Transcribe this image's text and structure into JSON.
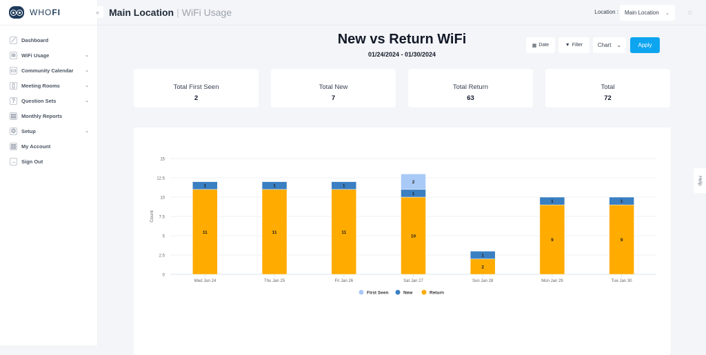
{
  "app": {
    "brand_light": "WHO",
    "brand_bold": "FI"
  },
  "sidebar": {
    "items": [
      {
        "label": "Dashboard",
        "icon": "chart-line-icon",
        "chevron": false
      },
      {
        "label": "WiFi Usage",
        "icon": "wifi-icon",
        "chevron": true
      },
      {
        "label": "Community Calendar",
        "icon": "calendar-icon",
        "chevron": true
      },
      {
        "label": "Meeting Rooms",
        "icon": "door-icon",
        "chevron": true
      },
      {
        "label": "Question Sets",
        "icon": "question-icon",
        "chevron": true
      },
      {
        "label": "Monthly Reports",
        "icon": "report-icon",
        "chevron": false
      },
      {
        "label": "Setup",
        "icon": "gear-icon",
        "chevron": true
      },
      {
        "label": "My Account",
        "icon": "account-icon",
        "chevron": false
      },
      {
        "label": "Sign Out",
        "icon": "sign-out-icon",
        "chevron": false
      }
    ]
  },
  "header": {
    "location": "Main Location",
    "page": "WiFi Usage",
    "location_label": "Location :",
    "location_value": "Main Location"
  },
  "page": {
    "title": "New vs Return WiFi",
    "date_range": "01/24/2024 - 01/30/2024",
    "date_btn": "Date",
    "filter_btn": "Filter",
    "view_select": "Chart",
    "apply_btn": "Apply",
    "help": "Help"
  },
  "stats": [
    {
      "label": "Total First Seen",
      "value": "2"
    },
    {
      "label": "Total New",
      "value": "7"
    },
    {
      "label": "Total Return",
      "value": "63"
    },
    {
      "label": "Total",
      "value": "72"
    }
  ],
  "chart_data": {
    "type": "bar",
    "stacked": true,
    "categories": [
      "Wed Jan 24",
      "Thu Jan 25",
      "Fri Jan 26",
      "Sat Jan 27",
      "Sun Jan 28",
      "Mon Jan 29",
      "Tue Jan 30"
    ],
    "series": [
      {
        "name": "Return",
        "color": "#ffab00",
        "values": [
          11,
          11,
          11,
          10,
          2,
          9,
          9
        ]
      },
      {
        "name": "New",
        "color": "#3a7fc1",
        "values": [
          1,
          1,
          1,
          1,
          1,
          1,
          1
        ]
      },
      {
        "name": "First Seen",
        "color": "#a9c9f7",
        "values": [
          0,
          0,
          0,
          2,
          0,
          0,
          0
        ]
      }
    ],
    "legend_order": [
      "First Seen",
      "New",
      "Return"
    ],
    "ylabel": "Count",
    "xlabel": "",
    "ylim": [
      0,
      15
    ],
    "yticks": [
      "0",
      "2.5",
      "5",
      "7.5",
      "10",
      "12.5",
      "15"
    ],
    "grid": true,
    "legend_placement": "bottom"
  }
}
